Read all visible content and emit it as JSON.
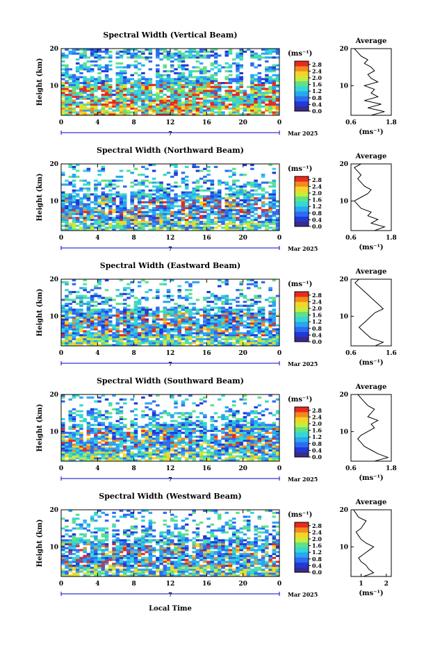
{
  "footer": {
    "xlabel": "Local Time"
  },
  "chart_data": [
    {
      "type": "heatmap",
      "title": "Spectral Width (Vertical Beam)",
      "ylabel": "Height (km)",
      "xlim": [
        0,
        24
      ],
      "ylim": [
        2,
        20
      ],
      "xticks": [
        "0",
        "4",
        "8",
        "12",
        "16",
        "20",
        "0"
      ],
      "yticks": [
        "20",
        "10"
      ],
      "date_center": "7",
      "date_right": "Mar 2025",
      "colorbar": {
        "unit": "(ms⁻¹)",
        "ticks": [
          "2.8",
          "2.4",
          "2.0",
          "1.6",
          "1.2",
          "0.8",
          "0.4",
          "0.0"
        ],
        "range": [
          0,
          3.0
        ]
      },
      "profile": {
        "title": "Average",
        "xlabel": "(ms⁻¹)",
        "xticks": [
          "0.6",
          "1.8"
        ],
        "yticks": [
          "20",
          "10"
        ],
        "xlim": [
          0.6,
          1.8
        ],
        "ylim": [
          2,
          20
        ],
        "heights": [
          2,
          3,
          4,
          5,
          6,
          7,
          8,
          9,
          10,
          11,
          12,
          13,
          14,
          15,
          16,
          17,
          18,
          19,
          20
        ],
        "values": [
          1.2,
          1.6,
          1.1,
          1.5,
          1.0,
          1.4,
          1.2,
          1.3,
          1.0,
          1.4,
          1.2,
          1.1,
          1.3,
          1.2,
          1.0,
          1.1,
          0.9,
          0.8,
          0.7
        ]
      }
    },
    {
      "type": "heatmap",
      "title": "Spectral Width (Northward Beam)",
      "ylabel": "Height (km)",
      "xlim": [
        0,
        24
      ],
      "ylim": [
        2,
        20
      ],
      "xticks": [
        "0",
        "4",
        "8",
        "12",
        "16",
        "20",
        "0"
      ],
      "yticks": [
        "20",
        "10"
      ],
      "date_center": "7",
      "date_right": "Mar 2025",
      "colorbar": {
        "unit": "(ms⁻¹)",
        "ticks": [
          "2.8",
          "2.4",
          "2.0",
          "1.6",
          "1.2",
          "0.8",
          "0.4",
          "0.0"
        ],
        "range": [
          0,
          3.0
        ]
      },
      "profile": {
        "title": "Average",
        "xlabel": "(ms⁻¹)",
        "xticks": [
          "0.6",
          "1.8"
        ],
        "yticks": [
          "20",
          "10"
        ],
        "xlim": [
          0.6,
          1.8
        ],
        "ylim": [
          2,
          20
        ],
        "heights": [
          2,
          3,
          4,
          5,
          6,
          7,
          8,
          9,
          10,
          11,
          12,
          13,
          14,
          15,
          16,
          17,
          18,
          19,
          20
        ],
        "values": [
          1.3,
          1.6,
          1.2,
          1.4,
          1.1,
          1.2,
          0.9,
          0.8,
          0.7,
          0.9,
          1.1,
          1.2,
          1.0,
          0.9,
          0.8,
          0.9,
          0.8,
          0.7,
          0.9
        ]
      }
    },
    {
      "type": "heatmap",
      "title": "Spectral Width (Eastward Beam)",
      "ylabel": "Height (km)",
      "xlim": [
        0,
        24
      ],
      "ylim": [
        2,
        20
      ],
      "xticks": [
        "0",
        "4",
        "8",
        "12",
        "16",
        "20",
        "0"
      ],
      "yticks": [
        "20",
        "10"
      ],
      "date_center": "7",
      "date_right": "Mar 2025",
      "colorbar": {
        "unit": "(ms⁻¹)",
        "ticks": [
          "2.8",
          "2.4",
          "2.0",
          "1.6",
          "1.2",
          "0.8",
          "0.4",
          "0.0"
        ],
        "range": [
          0,
          3.0
        ]
      },
      "profile": {
        "title": "Average",
        "xlabel": "(ms⁻¹)",
        "xticks": [
          "0.6",
          "1.6"
        ],
        "yticks": [
          "20",
          "10"
        ],
        "xlim": [
          0.6,
          1.6
        ],
        "ylim": [
          2,
          20
        ],
        "heights": [
          2,
          3,
          4,
          5,
          6,
          7,
          8,
          9,
          10,
          11,
          12,
          13,
          14,
          15,
          16,
          17,
          18,
          19,
          20
        ],
        "values": [
          1.2,
          1.4,
          1.1,
          1.0,
          0.9,
          0.8,
          0.9,
          1.0,
          1.1,
          1.2,
          1.4,
          1.3,
          1.2,
          1.1,
          1.0,
          0.9,
          0.8,
          0.7,
          0.8
        ]
      }
    },
    {
      "type": "heatmap",
      "title": "Spectral Width (Southward Beam)",
      "ylabel": "Height (km)",
      "xlim": [
        0,
        24
      ],
      "ylim": [
        2,
        20
      ],
      "xticks": [
        "0",
        "4",
        "8",
        "12",
        "16",
        "20",
        "0"
      ],
      "yticks": [
        "20",
        "10"
      ],
      "date_center": "7",
      "date_right": "Mar 2025",
      "colorbar": {
        "unit": "(ms⁻¹)",
        "ticks": [
          "2.8",
          "2.4",
          "2.0",
          "1.6",
          "1.2",
          "0.8",
          "0.4",
          "0.0"
        ],
        "range": [
          0,
          3.0
        ]
      },
      "profile": {
        "title": "Average",
        "xlabel": "(ms⁻¹)",
        "xticks": [
          "0.6",
          "1.8"
        ],
        "yticks": [
          "20",
          "10"
        ],
        "xlim": [
          0.6,
          1.8
        ],
        "ylim": [
          2,
          20
        ],
        "heights": [
          2,
          3,
          4,
          5,
          6,
          7,
          8,
          9,
          10,
          11,
          12,
          13,
          14,
          15,
          16,
          17,
          18,
          19,
          20
        ],
        "values": [
          1.3,
          1.7,
          1.4,
          1.2,
          1.0,
          0.9,
          0.8,
          0.9,
          1.1,
          1.3,
          1.2,
          1.4,
          1.1,
          1.2,
          1.3,
          1.1,
          1.0,
          0.9,
          0.8
        ]
      }
    },
    {
      "type": "heatmap",
      "title": "Spectral Width (Westward Beam)",
      "ylabel": "Height (km)",
      "xlim": [
        0,
        24
      ],
      "ylim": [
        2,
        20
      ],
      "xticks": [
        "0",
        "4",
        "8",
        "12",
        "16",
        "20",
        "0"
      ],
      "yticks": [
        "20",
        "10"
      ],
      "date_center": "7",
      "date_right": "Mar 2025",
      "colorbar": {
        "unit": "(ms⁻¹)",
        "ticks": [
          "2.8",
          "2.4",
          "2.0",
          "1.6",
          "1.2",
          "0.8",
          "0.4",
          "0.0"
        ],
        "range": [
          0,
          3.0
        ]
      },
      "profile": {
        "title": "Average",
        "xlabel": "(ms⁻¹)",
        "xticks": [
          "1",
          "2"
        ],
        "yticks": [
          "20",
          "10"
        ],
        "xlim": [
          0.6,
          2.2
        ],
        "ylim": [
          2,
          20
        ],
        "heights": [
          2,
          3,
          4,
          5,
          6,
          7,
          8,
          9,
          10,
          11,
          12,
          13,
          14,
          15,
          16,
          17,
          18,
          19,
          20
        ],
        "values": [
          1.1,
          1.5,
          1.3,
          1.2,
          1.0,
          0.9,
          1.1,
          1.3,
          1.5,
          1.2,
          1.0,
          0.9,
          0.8,
          1.0,
          1.1,
          1.2,
          0.9,
          0.8,
          0.7
        ]
      }
    }
  ],
  "colors": {
    "colormap": [
      "#3b2a8c",
      "#1f3ad8",
      "#2f6bf0",
      "#2aa6f2",
      "#35d6d6",
      "#5fe08a",
      "#c8ec3a",
      "#f6d32a",
      "#f38a1e",
      "#e82a1e"
    ]
  }
}
